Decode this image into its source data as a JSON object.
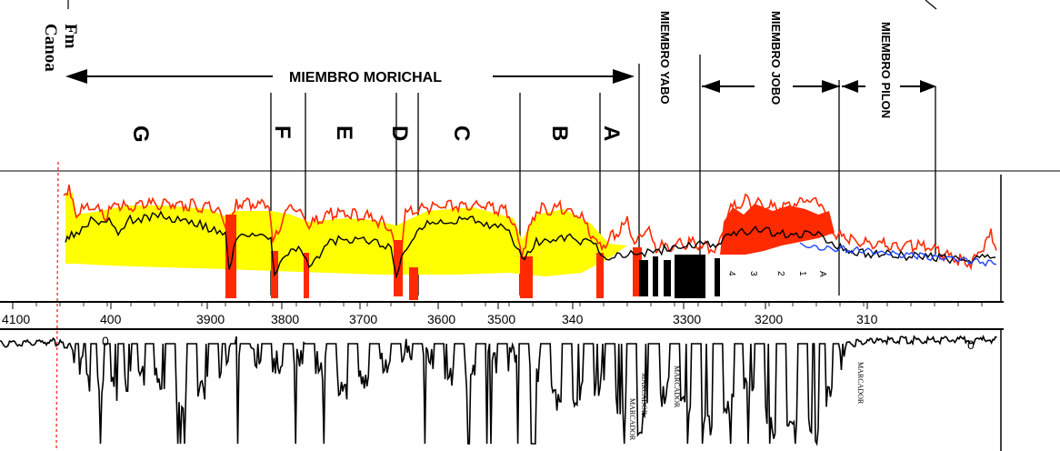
{
  "formation": {
    "line1": "Fm",
    "line2": "Canoa"
  },
  "members": {
    "morichal": "MIEMBRO MORICHAL",
    "yabo": "MIEMBRO YABO",
    "jobo": "MIEMBRO JOBO",
    "pilon": "MIEMBRO PILON"
  },
  "subunits": [
    "G",
    "F",
    "E",
    "D",
    "C",
    "B",
    "A"
  ],
  "depth_ticks": [
    "4100",
    "400",
    "3900",
    "3800",
    "3700",
    "3600",
    "3500",
    "340",
    "3300",
    "3200",
    "310"
  ],
  "depth_range_ft": [
    4100,
    3080
  ],
  "upper_log_marks": [
    "4",
    "3",
    "2",
    "1",
    "A"
  ],
  "lower_log": {
    "zero_left": "0",
    "zero_right": "0",
    "markers": [
      "MARCADOR",
      "MARCADOR",
      "MARCADOR",
      "MARCADOR"
    ]
  },
  "colors": {
    "yellow_fill": "#ffff00",
    "red_curve": "#ff2a00",
    "black_curve": "#000000",
    "blue_curve": "#1e46ff",
    "depth_line": "#ff4040"
  }
}
